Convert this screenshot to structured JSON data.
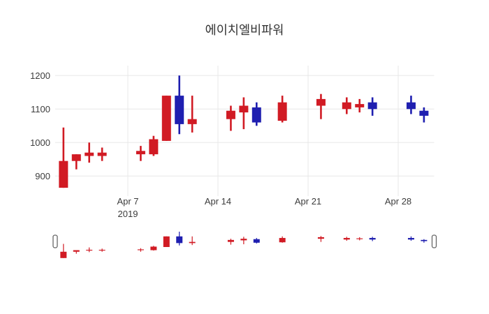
{
  "title": "에이치엘비파워",
  "colors": {
    "up": "#d11b24",
    "down": "#1f1fb0",
    "grid": "#e8e8e8",
    "text": "#3c3c3c",
    "handle_fill": "#ffffff",
    "handle_border": "#666666",
    "background": "#ffffff"
  },
  "y_axis": {
    "ticks": [
      1200,
      1100,
      1000,
      900
    ]
  },
  "x_axis": {
    "ticks": [
      {
        "label": "Apr 7",
        "sublabel": "2019",
        "day": 6
      },
      {
        "label": "Apr 14",
        "sublabel": "",
        "day": 13
      },
      {
        "label": "Apr 21",
        "sublabel": "",
        "day": 20
      },
      {
        "label": "Apr 28",
        "sublabel": "",
        "day": 27
      }
    ]
  },
  "chart_data": {
    "type": "candlestick",
    "title": "에이치엘비파워",
    "x_unit": "day of April 2019",
    "ylim": [
      840,
      1230
    ],
    "yticks": [
      900,
      1000,
      1100,
      1200
    ],
    "xtick_labels": [
      "Apr 7 2019",
      "Apr 14",
      "Apr 21",
      "Apr 28"
    ],
    "grid": true,
    "legend": "none",
    "up_color_meaning": "price increase (red)",
    "down_color_meaning": "price decrease (blue)",
    "rangeslider_shown": true,
    "series": [
      {
        "date": "Apr 2",
        "day": 1,
        "open": 865,
        "high": 1045,
        "low": 865,
        "close": 945
      },
      {
        "date": "Apr 3",
        "day": 2,
        "open": 945,
        "high": 965,
        "low": 920,
        "close": 965
      },
      {
        "date": "Apr 4",
        "day": 3,
        "open": 960,
        "high": 1000,
        "low": 940,
        "close": 970
      },
      {
        "date": "Apr 5",
        "day": 4,
        "open": 960,
        "high": 985,
        "low": 945,
        "close": 970
      },
      {
        "date": "Apr 8",
        "day": 7,
        "open": 965,
        "high": 990,
        "low": 945,
        "close": 975
      },
      {
        "date": "Apr 9",
        "day": 8,
        "open": 965,
        "high": 1020,
        "low": 960,
        "close": 1010
      },
      {
        "date": "Apr 10",
        "day": 9,
        "open": 1005,
        "high": 1140,
        "low": 1005,
        "close": 1140
      },
      {
        "date": "Apr 11",
        "day": 10,
        "open": 1140,
        "high": 1200,
        "low": 1025,
        "close": 1055
      },
      {
        "date": "Apr 12",
        "day": 11,
        "open": 1055,
        "high": 1140,
        "low": 1030,
        "close": 1070
      },
      {
        "date": "Apr 15",
        "day": 14,
        "open": 1070,
        "high": 1110,
        "low": 1035,
        "close": 1095
      },
      {
        "date": "Apr 16",
        "day": 15,
        "open": 1090,
        "high": 1135,
        "low": 1040,
        "close": 1110
      },
      {
        "date": "Apr 17",
        "day": 16,
        "open": 1105,
        "high": 1120,
        "low": 1050,
        "close": 1060
      },
      {
        "date": "Apr 19",
        "day": 18,
        "open": 1065,
        "high": 1140,
        "low": 1060,
        "close": 1120
      },
      {
        "date": "Apr 22",
        "day": 21,
        "open": 1110,
        "high": 1145,
        "low": 1070,
        "close": 1130
      },
      {
        "date": "Apr 24",
        "day": 23,
        "open": 1100,
        "high": 1135,
        "low": 1085,
        "close": 1120
      },
      {
        "date": "Apr 25",
        "day": 24,
        "open": 1105,
        "high": 1130,
        "low": 1090,
        "close": 1115
      },
      {
        "date": "Apr 26",
        "day": 25,
        "open": 1120,
        "high": 1135,
        "low": 1080,
        "close": 1100
      },
      {
        "date": "Apr 29",
        "day": 28,
        "open": 1120,
        "high": 1140,
        "low": 1085,
        "close": 1100
      },
      {
        "date": "Apr 30",
        "day": 29,
        "open": 1095,
        "high": 1105,
        "low": 1060,
        "close": 1080
      }
    ]
  },
  "rangeslider": {
    "left_handle": "range-start-handle",
    "right_handle": "range-end-handle"
  }
}
